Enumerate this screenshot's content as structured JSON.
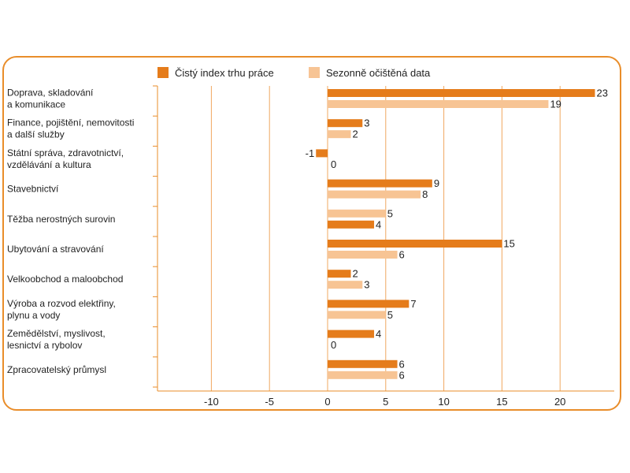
{
  "chart_data": {
    "type": "bar",
    "orientation": "horizontal",
    "title": "",
    "xlabel": "",
    "ylabel": "",
    "xlim": [
      -15,
      24
    ],
    "xticks": [
      -10,
      -5,
      0,
      5,
      10,
      15,
      20
    ],
    "grid": true,
    "legend_position": "top",
    "categories": [
      [
        "Doprava, skladování",
        "a komunikace"
      ],
      [
        "Finance, pojištění, nemovitosti",
        "a další služby"
      ],
      [
        "Státní správa, zdravotnictví,",
        "vzdělávání a kultura"
      ],
      [
        "Stavebnictví"
      ],
      [
        "Těžba nerostných surovin"
      ],
      [
        "Ubytování a stravování"
      ],
      [
        "Velkoobchod a maloobchod"
      ],
      [
        "Výroba a rozvod elektřiny,",
        "plynu a vody"
      ],
      [
        "Zemědělství, myslivost,",
        "lesnictví a rybolov"
      ],
      [
        "Zpracovatelský průmysl"
      ]
    ],
    "series": [
      {
        "name": "Čistý index trhu práce",
        "color": "#e57c1b",
        "values": [
          23,
          3,
          -1,
          9,
          4,
          15,
          2,
          7,
          4,
          6
        ],
        "labels": [
          "23",
          "3",
          "-1",
          "9",
          "4",
          "15",
          "2",
          "7",
          "4",
          "6"
        ]
      },
      {
        "name": "Sezonně očištěná data",
        "color": "#f7c494",
        "values": [
          19,
          2,
          0,
          8,
          5,
          6,
          3,
          5,
          0,
          6
        ],
        "labels": [
          "19",
          "2",
          "0",
          "8",
          "5",
          "6",
          "3",
          "5",
          "0",
          "6"
        ]
      }
    ],
    "bar_order_per_category": [
      [
        0,
        1
      ],
      [
        0,
        1
      ],
      [
        0,
        1
      ],
      [
        0,
        1
      ],
      [
        1,
        0
      ],
      [
        0,
        1
      ],
      [
        0,
        1
      ],
      [
        0,
        1
      ],
      [
        0,
        1
      ],
      [
        0,
        1
      ]
    ],
    "colors": {
      "frame": "#e98d2a",
      "grid": "#f0a860",
      "axis": "#e98d2a"
    }
  }
}
